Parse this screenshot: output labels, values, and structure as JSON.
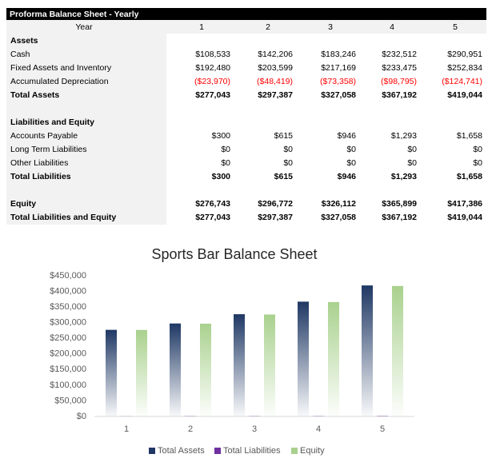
{
  "header": {
    "title": "Proforma Balance Sheet - Yearly"
  },
  "table": {
    "columns": [
      "Year",
      "1",
      "2",
      "3",
      "4",
      "5"
    ],
    "sections": [
      {
        "rows": [
          {
            "cells": [
              "Assets"
            ],
            "bold": true
          },
          {
            "cells": [
              "Cash",
              "$108,533",
              "$142,206",
              "$183,246",
              "$232,512",
              "$290,951"
            ]
          },
          {
            "cells": [
              "Fixed Assets and Inventory",
              "$192,480",
              "$203,599",
              "$217,169",
              "$233,475",
              "$252,834"
            ]
          },
          {
            "cells": [
              "Accumulated Depreciation",
              "($23,970)",
              "($48,419)",
              "($73,358)",
              "($98,795)",
              "($124,741)"
            ],
            "color": "#ff0000"
          },
          {
            "cells": [
              "Total Assets",
              "$277,043",
              "$297,387",
              "$327,058",
              "$367,192",
              "$419,044"
            ],
            "bold": true
          }
        ]
      },
      {
        "rows": [
          {
            "cells": [
              "Liabilities and Equity"
            ],
            "bold": true
          },
          {
            "cells": [
              "Accounts Payable",
              "$300",
              "$615",
              "$946",
              "$1,293",
              "$1,658"
            ]
          },
          {
            "cells": [
              "Long Term Liabilities",
              "$0",
              "$0",
              "$0",
              "$0",
              "$0"
            ]
          },
          {
            "cells": [
              "Other Liabilities",
              "$0",
              "$0",
              "$0",
              "$0",
              "$0"
            ]
          },
          {
            "cells": [
              "Total Liabilities",
              "$300",
              "$615",
              "$946",
              "$1,293",
              "$1,658"
            ],
            "bold": true
          }
        ]
      },
      {
        "rows": [
          {
            "cells": [
              "Equity",
              "$276,743",
              "$296,772",
              "$326,112",
              "$365,899",
              "$417,386"
            ],
            "bold": true
          },
          {
            "cells": [
              "Total Liabilities and Equity",
              "$277,043",
              "$297,387",
              "$327,058",
              "$367,192",
              "$419,044"
            ],
            "bold": true
          }
        ]
      }
    ]
  },
  "chart_data": {
    "type": "bar",
    "title": "Sports Bar Balance Sheet",
    "categories": [
      "1",
      "2",
      "3",
      "4",
      "5"
    ],
    "series": [
      {
        "name": "Total Assets",
        "color": "#1f3864",
        "values": [
          277043,
          297387,
          327058,
          367192,
          419044
        ]
      },
      {
        "name": "Total Liabilities",
        "color": "#7030a0",
        "values": [
          300,
          615,
          946,
          1293,
          1658
        ]
      },
      {
        "name": "Equity",
        "color": "#a9d18e",
        "values": [
          276743,
          296772,
          326112,
          365899,
          417386
        ]
      }
    ],
    "ylim": [
      0,
      450000
    ],
    "yticks": [
      {
        "value": 0,
        "label": "$0"
      },
      {
        "value": 50000,
        "label": "$50,000"
      },
      {
        "value": 100000,
        "label": "$100,000"
      },
      {
        "value": 150000,
        "label": "$150,000"
      },
      {
        "value": 200000,
        "label": "$200,000"
      },
      {
        "value": 250000,
        "label": "$250,000"
      },
      {
        "value": 300000,
        "label": "$300,000"
      },
      {
        "value": 350000,
        "label": "$350,000"
      },
      {
        "value": 400000,
        "label": "$400,000"
      },
      {
        "value": 450000,
        "label": "$450,000"
      }
    ],
    "legend": "bottom",
    "grid": false
  }
}
